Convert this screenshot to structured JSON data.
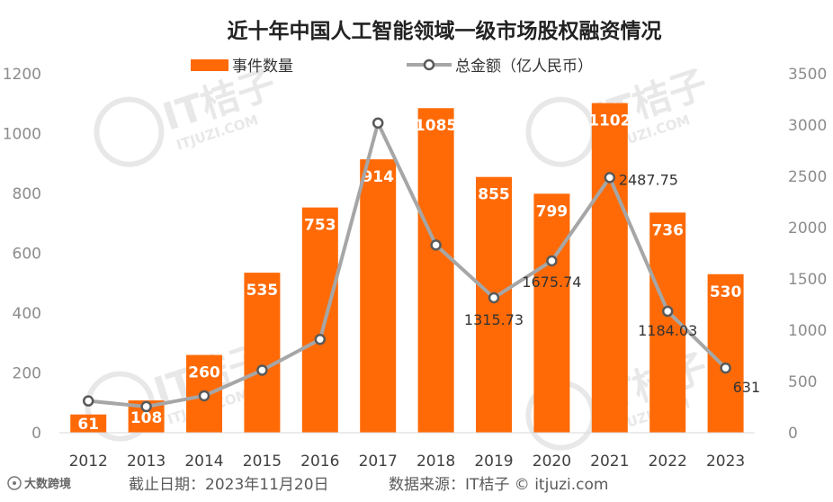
{
  "colors": {
    "bar": "#FF6A06",
    "line": "#A6A6A6",
    "marker_fill": "#ffffff",
    "marker_stroke": "#595959",
    "watermark": "#e8e8e8"
  },
  "footer": {
    "logo_text": "大数跨境",
    "date_text": "截止日期：2023年11月20日",
    "source_text": "数据来源：IT桔子 © itjuzi.com"
  },
  "watermark": {
    "brand": "IT桔子",
    "site": "ITJUZI.COM"
  },
  "chart_data": {
    "type": "bar",
    "title": "近十年中国人工智能领域一级市场股权融资情况",
    "categories": [
      "2012",
      "2013",
      "2014",
      "2015",
      "2016",
      "2017",
      "2018",
      "2019",
      "2020",
      "2021",
      "2022",
      "2023"
    ],
    "series": [
      {
        "name": "事件数量",
        "type": "bar",
        "axis": "left",
        "values": [
          61,
          108,
          260,
          535,
          753,
          914,
          1085,
          855,
          799,
          1102,
          736,
          530
        ],
        "labels": [
          "61",
          "108",
          "260",
          "535",
          "753",
          "914",
          "1085",
          "855",
          "799",
          "1102",
          "736",
          "530"
        ]
      },
      {
        "name": "总金额（亿人民币）",
        "type": "line",
        "axis": "right",
        "values": [
          310,
          255,
          360,
          610,
          910,
          3020,
          1830,
          1315.73,
          1675.74,
          2487.75,
          1184.03,
          631
        ],
        "labels": [
          "",
          "",
          "",
          "",
          "",
          "",
          "",
          "1315.73",
          "1675.74",
          "2487.75",
          "1184.03",
          "631"
        ]
      }
    ],
    "y_left": {
      "min": 0,
      "max": 1200,
      "ticks": [
        "0",
        "200",
        "400",
        "600",
        "800",
        "1000",
        "1200"
      ]
    },
    "y_right": {
      "min": 0,
      "max": 3500,
      "ticks": [
        "0",
        "500",
        "1000",
        "1500",
        "2000",
        "2500",
        "3000",
        "3500"
      ]
    },
    "legend_position": "top",
    "grid": false
  }
}
